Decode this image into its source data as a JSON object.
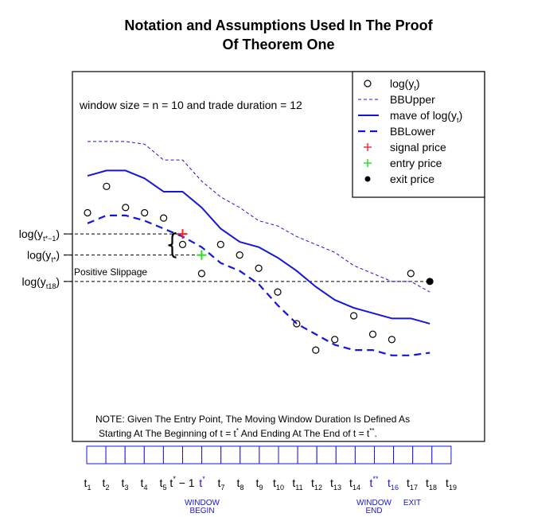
{
  "chart_data": {
    "type": "line",
    "title": [
      "Notation and Assumptions Used In The Proof",
      "Of Theorem One"
    ],
    "x": [
      1,
      2,
      3,
      4,
      5,
      6,
      7,
      8,
      9,
      10,
      11,
      12,
      13,
      14,
      15,
      16,
      17,
      18,
      19
    ],
    "x_tick_labels": [
      {
        "base": "t",
        "sub": "1"
      },
      {
        "base": "t",
        "sub": "2"
      },
      {
        "base": "t",
        "sub": "3"
      },
      {
        "base": "t",
        "sub": "4"
      },
      {
        "base": "t",
        "sub": "5"
      },
      {
        "base": "t",
        "sup": "*",
        "suffix": " − 1"
      },
      {
        "base": "t",
        "sup": "*",
        "color": "#1515e0"
      },
      {
        "base": "t",
        "sub": "7"
      },
      {
        "base": "t",
        "sub": "8"
      },
      {
        "base": "t",
        "sub": "9"
      },
      {
        "base": "t",
        "sub": "10"
      },
      {
        "base": "t",
        "sub": "11"
      },
      {
        "base": "t",
        "sub": "12"
      },
      {
        "base": "t",
        "sub": "13"
      },
      {
        "base": "t",
        "sub": "14"
      },
      {
        "base": "t",
        "sup": "**",
        "color": "#1515e0"
      },
      {
        "base": "t",
        "sub": "16",
        "color": "#1515e0"
      },
      {
        "base": "t",
        "sub": "17"
      },
      {
        "base": "t",
        "sub": "18"
      },
      {
        "base": "t",
        "sub": "19"
      }
    ],
    "x_tick_positions": [
      1,
      2,
      3,
      4,
      5,
      5.5,
      6,
      7,
      8,
      9,
      10,
      11,
      12,
      13,
      14,
      15,
      16,
      17,
      18,
      19
    ],
    "ylim": [
      0,
      100
    ],
    "series": [
      {
        "name": "log(y_t)",
        "style": "points",
        "marker": "open-circle",
        "color": "#000000",
        "values": [
          64,
          74,
          66,
          64,
          62,
          52,
          41,
          52,
          48,
          43,
          34,
          22,
          12,
          16,
          25,
          18,
          16,
          41,
          null
        ]
      },
      {
        "name": "BBUpper",
        "style": "thin-dashed",
        "color": "#1515e0",
        "values": [
          91,
          91,
          91,
          90,
          84,
          84,
          76,
          70,
          66,
          61,
          59,
          55,
          52,
          49,
          44,
          41,
          38,
          38,
          34
        ]
      },
      {
        "name": "mave of log(y_t)",
        "style": "solid",
        "color": "#1515e0",
        "values": [
          78,
          80,
          80,
          77,
          72,
          72,
          66,
          58,
          53,
          51,
          47,
          42,
          36,
          31,
          28,
          26,
          24,
          24,
          22
        ]
      },
      {
        "name": "BBLower",
        "style": "thick-dashed",
        "color": "#1515e0",
        "values": [
          60,
          63,
          63,
          61,
          58,
          55,
          51,
          45,
          42,
          37,
          29,
          22,
          18,
          14,
          12,
          12,
          10,
          10,
          11
        ]
      }
    ],
    "markers": [
      {
        "name": "signal price",
        "symbol": "+",
        "color": "#ff2020",
        "x": 6,
        "y": 56
      },
      {
        "name": "entry price",
        "symbol": "+",
        "color": "#22dd22",
        "x": 7,
        "y": 48
      },
      {
        "name": "exit price",
        "symbol": "dot",
        "color": "#000000",
        "x": 19,
        "y": 38
      }
    ],
    "reference_lines": [
      {
        "y": 56,
        "x_end": 6,
        "label_base": "log(y",
        "label_sub": "t*−1",
        "label_end": ")"
      },
      {
        "y": 48,
        "x_end": 7,
        "label_base": "log(y",
        "label_sub": "t*",
        "label_end": ")"
      },
      {
        "y": 38,
        "x_end": 19,
        "label_base": "log(y",
        "label_sub": "t18",
        "label_end": ")"
      }
    ],
    "annotations": {
      "window_info": "window size = n = 10 and trade duration = 12",
      "slippage": "Positive Slippage",
      "note_line1": "NOTE: Given The Entry Point, The Moving Window Duration Is Defined As",
      "note_line2_a": "Starting At The Beginning of  t = t",
      "note_line2_sup1": "*",
      "note_line2_b": " And Ending At The End of  t = t",
      "note_line2_sup2": "**",
      "note_line2_c": "."
    },
    "legend": {
      "placement": "top-right",
      "entries": [
        {
          "label_base": "log(y",
          "label_sub": "t",
          "label_end": ")",
          "symbol": "open-circle",
          "color": "#000000"
        },
        {
          "label": "BBUpper",
          "symbol": "thin-dash",
          "color": "#1515e0"
        },
        {
          "label_base": "mave of log(y",
          "label_sub": "t",
          "label_end": ")",
          "symbol": "solid",
          "color": "#1515e0"
        },
        {
          "label": "BBLower",
          "symbol": "thick-dash",
          "color": "#1515e0"
        },
        {
          "label": "signal price",
          "symbol": "plus",
          "color": "#ff2020"
        },
        {
          "label": "entry price",
          "symbol": "plus",
          "color": "#22dd22"
        },
        {
          "label": "exit price",
          "symbol": "dot",
          "color": "#000000"
        }
      ]
    },
    "timeline_boxes": 19,
    "window_labels": [
      {
        "text": [
          "WINDOW",
          "BEGIN"
        ],
        "at_tick": 6
      },
      {
        "text": [
          "WINDOW",
          "END"
        ],
        "at_tick": 15
      },
      {
        "text": [
          "EXIT"
        ],
        "at_tick": 17
      }
    ],
    "grid": false
  }
}
